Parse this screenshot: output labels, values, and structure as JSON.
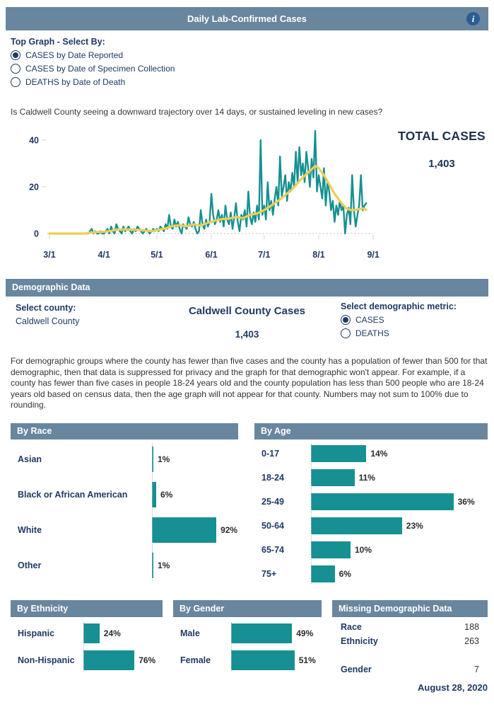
{
  "colors": {
    "slate_header": "#69869f",
    "teal": "#169093",
    "avg_yellow": "#ecce52",
    "navy": "#1f3a63",
    "info_icon_bg": "#2d5c94"
  },
  "header": {
    "title": "Daily Lab-Confirmed Cases"
  },
  "top_controls": {
    "label": "Top Graph - Select By:",
    "options": [
      {
        "label": "CASES by Date Reported",
        "selected": true
      },
      {
        "label": "CASES by Date of Specimen Collection",
        "selected": false
      },
      {
        "label": "DEATHS by Date of Death",
        "selected": false
      }
    ]
  },
  "question": "Is Caldwell County seeing a downward trajectory over 14 days, or sustained leveling in new cases?",
  "total_cases": {
    "label": "TOTAL CASES",
    "value": "1,403"
  },
  "demographic_section": {
    "title": "Demographic Data"
  },
  "county_select": {
    "label": "Select county:",
    "value": "Caldwell County"
  },
  "county_cases": {
    "title": "Caldwell County Cases",
    "value": "1,403"
  },
  "metric_select": {
    "label": "Select demographic metric:",
    "options": [
      {
        "label": "CASES",
        "selected": true
      },
      {
        "label": "DEATHS",
        "selected": false
      }
    ]
  },
  "privacy_note": "For demographic groups where the county has fewer than five cases and the county has a population of fewer than 500 for that demographic, then that data is suppressed for privacy and the graph for that demographic won't appear. For example, if a county has fewer than five cases in people 18-24 years old and the county population has less than 500 people who are 18-24 years old based on census data, then the age graph will not appear for that county. Numbers may not sum to 100% due to rounding.",
  "chart_data": [
    {
      "type": "line",
      "title": "CASES by Date Reported",
      "xlabel": "",
      "ylabel": "",
      "ylim": [
        0,
        44
      ],
      "grid": "zero-baseline-dotted",
      "legend": "none",
      "x_tick_labels": [
        "3/1",
        "4/1",
        "5/1",
        "6/1",
        "7/1",
        "8/1",
        "9/1"
      ],
      "x_tick_days": [
        0,
        31,
        61,
        92,
        122,
        153,
        184
      ],
      "y_ticks": [
        0,
        20,
        40
      ],
      "series": [
        {
          "name": "Daily cases",
          "color_key": "teal",
          "points": [
            [
              0,
              0
            ],
            [
              2,
              0
            ],
            [
              4,
              0
            ],
            [
              6,
              0
            ],
            [
              8,
              0
            ],
            [
              10,
              0
            ],
            [
              12,
              0
            ],
            [
              14,
              0
            ],
            [
              16,
              0
            ],
            [
              18,
              0
            ],
            [
              20,
              0
            ],
            [
              22,
              0
            ],
            [
              23,
              1
            ],
            [
              24,
              2
            ],
            [
              25,
              0
            ],
            [
              26,
              1
            ],
            [
              27,
              0
            ],
            [
              28,
              0
            ],
            [
              29,
              1
            ],
            [
              30,
              0
            ],
            [
              31,
              0
            ],
            [
              33,
              2
            ],
            [
              34,
              0
            ],
            [
              35,
              3
            ],
            [
              36,
              1
            ],
            [
              37,
              0
            ],
            [
              38,
              4
            ],
            [
              39,
              2
            ],
            [
              40,
              1
            ],
            [
              41,
              0
            ],
            [
              42,
              3
            ],
            [
              43,
              1
            ],
            [
              44,
              2
            ],
            [
              45,
              3
            ],
            [
              46,
              1
            ],
            [
              47,
              0
            ],
            [
              48,
              2
            ],
            [
              49,
              1
            ],
            [
              50,
              3
            ],
            [
              51,
              2
            ],
            [
              52,
              1
            ],
            [
              53,
              0
            ],
            [
              54,
              1
            ],
            [
              55,
              2
            ],
            [
              56,
              1
            ],
            [
              57,
              0
            ],
            [
              58,
              1
            ],
            [
              59,
              2
            ],
            [
              60,
              1
            ],
            [
              61,
              2
            ],
            [
              62,
              1
            ],
            [
              63,
              3
            ],
            [
              64,
              2
            ],
            [
              65,
              1
            ],
            [
              66,
              4
            ],
            [
              67,
              2
            ],
            [
              68,
              8
            ],
            [
              69,
              3
            ],
            [
              70,
              2
            ],
            [
              71,
              6
            ],
            [
              72,
              3
            ],
            [
              73,
              5
            ],
            [
              74,
              2
            ],
            [
              75,
              0
            ],
            [
              76,
              4
            ],
            [
              77,
              3
            ],
            [
              78,
              2
            ],
            [
              79,
              7
            ],
            [
              80,
              4
            ],
            [
              81,
              3
            ],
            [
              82,
              5
            ],
            [
              83,
              2
            ],
            [
              84,
              0
            ],
            [
              85,
              1
            ],
            [
              86,
              10
            ],
            [
              87,
              4
            ],
            [
              88,
              2
            ],
            [
              89,
              6
            ],
            [
              90,
              3
            ],
            [
              91,
              5
            ],
            [
              92,
              17
            ],
            [
              93,
              8
            ],
            [
              94,
              4
            ],
            [
              95,
              6
            ],
            [
              96,
              10
            ],
            [
              97,
              5
            ],
            [
              98,
              8
            ],
            [
              99,
              3
            ],
            [
              100,
              12
            ],
            [
              101,
              6
            ],
            [
              102,
              4
            ],
            [
              103,
              9
            ],
            [
              104,
              2
            ],
            [
              105,
              7
            ],
            [
              106,
              13
            ],
            [
              107,
              5
            ],
            [
              108,
              1
            ],
            [
              109,
              8
            ],
            [
              110,
              6
            ],
            [
              111,
              10
            ],
            [
              112,
              3
            ],
            [
              113,
              18
            ],
            [
              114,
              7
            ],
            [
              115,
              4
            ],
            [
              116,
              9
            ],
            [
              117,
              5
            ],
            [
              118,
              12
            ],
            [
              119,
              6
            ],
            [
              120,
              40
            ],
            [
              121,
              8
            ],
            [
              122,
              12
            ],
            [
              123,
              6
            ],
            [
              124,
              22
            ],
            [
              125,
              10
            ],
            [
              126,
              14
            ],
            [
              127,
              8
            ],
            [
              128,
              15
            ],
            [
              129,
              20
            ],
            [
              130,
              12
            ],
            [
              131,
              33
            ],
            [
              132,
              16
            ],
            [
              133,
              20
            ],
            [
              134,
              25
            ],
            [
              135,
              14
            ],
            [
              136,
              22
            ],
            [
              137,
              18
            ],
            [
              138,
              26
            ],
            [
              139,
              20
            ],
            [
              140,
              35
            ],
            [
              141,
              22
            ],
            [
              142,
              37
            ],
            [
              143,
              25
            ],
            [
              144,
              30
            ],
            [
              145,
              22
            ],
            [
              146,
              35
            ],
            [
              147,
              28
            ],
            [
              148,
              20
            ],
            [
              149,
              32
            ],
            [
              150,
              24
            ],
            [
              151,
              44
            ],
            [
              152,
              18
            ],
            [
              153,
              25
            ],
            [
              154,
              20
            ],
            [
              155,
              15
            ],
            [
              156,
              28
            ],
            [
              157,
              12
            ],
            [
              158,
              22
            ],
            [
              159,
              18
            ],
            [
              160,
              10
            ],
            [
              161,
              14
            ],
            [
              162,
              5
            ],
            [
              163,
              12
            ],
            [
              164,
              8
            ],
            [
              165,
              14
            ],
            [
              166,
              10
            ],
            [
              167,
              12
            ],
            [
              168,
              0
            ],
            [
              169,
              8
            ],
            [
              170,
              11
            ],
            [
              171,
              4
            ],
            [
              172,
              25
            ],
            [
              173,
              10
            ],
            [
              174,
              3
            ],
            [
              175,
              8
            ],
            [
              176,
              12
            ],
            [
              177,
              25
            ],
            [
              178,
              10
            ],
            [
              179,
              12
            ],
            [
              180,
              13
            ]
          ]
        },
        {
          "name": "7-day average",
          "color_key": "avg_yellow",
          "points": [
            [
              0,
              0
            ],
            [
              10,
              0
            ],
            [
              20,
              0
            ],
            [
              23,
              0.3
            ],
            [
              26,
              0.6
            ],
            [
              30,
              0.7
            ],
            [
              34,
              1
            ],
            [
              38,
              1.6
            ],
            [
              42,
              1.8
            ],
            [
              46,
              1.7
            ],
            [
              50,
              1.6
            ],
            [
              54,
              1.3
            ],
            [
              58,
              1
            ],
            [
              62,
              1.6
            ],
            [
              66,
              2.2
            ],
            [
              70,
              3.2
            ],
            [
              74,
              3.6
            ],
            [
              78,
              3.1
            ],
            [
              82,
              3.9
            ],
            [
              86,
              3.4
            ],
            [
              90,
              4.6
            ],
            [
              94,
              5.5
            ],
            [
              98,
              6.2
            ],
            [
              102,
              6.4
            ],
            [
              106,
              7.1
            ],
            [
              110,
              6.6
            ],
            [
              114,
              8
            ],
            [
              118,
              8.6
            ],
            [
              122,
              10
            ],
            [
              126,
              12
            ],
            [
              130,
              14
            ],
            [
              134,
              16.5
            ],
            [
              138,
              19
            ],
            [
              142,
              22.5
            ],
            [
              146,
              25.5
            ],
            [
              149,
              27.5
            ],
            [
              151,
              29
            ],
            [
              153,
              28
            ],
            [
              156,
              25
            ],
            [
              159,
              21
            ],
            [
              162,
              17
            ],
            [
              166,
              13
            ],
            [
              169,
              10.5
            ],
            [
              172,
              10
            ],
            [
              175,
              10.3
            ],
            [
              178,
              10.8
            ],
            [
              180,
              10.2
            ]
          ]
        }
      ]
    },
    {
      "type": "bar",
      "title": "By Race",
      "orientation": "horizontal",
      "unit": "%",
      "rows": [
        {
          "category": "Asian",
          "value": 1,
          "label": "1%"
        },
        {
          "category": "Black or African American",
          "value": 6,
          "label": "6%"
        },
        {
          "category": "White",
          "value": 92,
          "label": "92%"
        },
        {
          "category": "Other",
          "value": 1,
          "label": "1%"
        }
      ]
    },
    {
      "type": "bar",
      "title": "By Age",
      "orientation": "horizontal",
      "unit": "%",
      "rows": [
        {
          "category": "0-17",
          "value": 14,
          "label": "14%"
        },
        {
          "category": "18-24",
          "value": 11,
          "label": "11%"
        },
        {
          "category": "25-49",
          "value": 36,
          "label": "36%"
        },
        {
          "category": "50-64",
          "value": 23,
          "label": "23%"
        },
        {
          "category": "65-74",
          "value": 10,
          "label": "10%"
        },
        {
          "category": "75+",
          "value": 6,
          "label": "6%"
        }
      ]
    },
    {
      "type": "bar",
      "title": "By Ethnicity",
      "orientation": "horizontal",
      "unit": "%",
      "rows": [
        {
          "category": "Hispanic",
          "value": 24,
          "label": "24%"
        },
        {
          "category": "Non-Hispanic",
          "value": 76,
          "label": "76%"
        }
      ]
    },
    {
      "type": "bar",
      "title": "By Gender",
      "orientation": "horizontal",
      "unit": "%",
      "rows": [
        {
          "category": "Male",
          "value": 49,
          "label": "49%"
        },
        {
          "category": "Female",
          "value": 51,
          "label": "51%"
        }
      ]
    }
  ],
  "missing_data": {
    "title": "Missing Demographic Data",
    "rows": [
      {
        "label": "Race",
        "value": "188"
      },
      {
        "label": "Ethnicity",
        "value": "263"
      },
      {
        "label": "Gender",
        "value": "7"
      }
    ]
  },
  "footer_date": "August 28, 2020"
}
